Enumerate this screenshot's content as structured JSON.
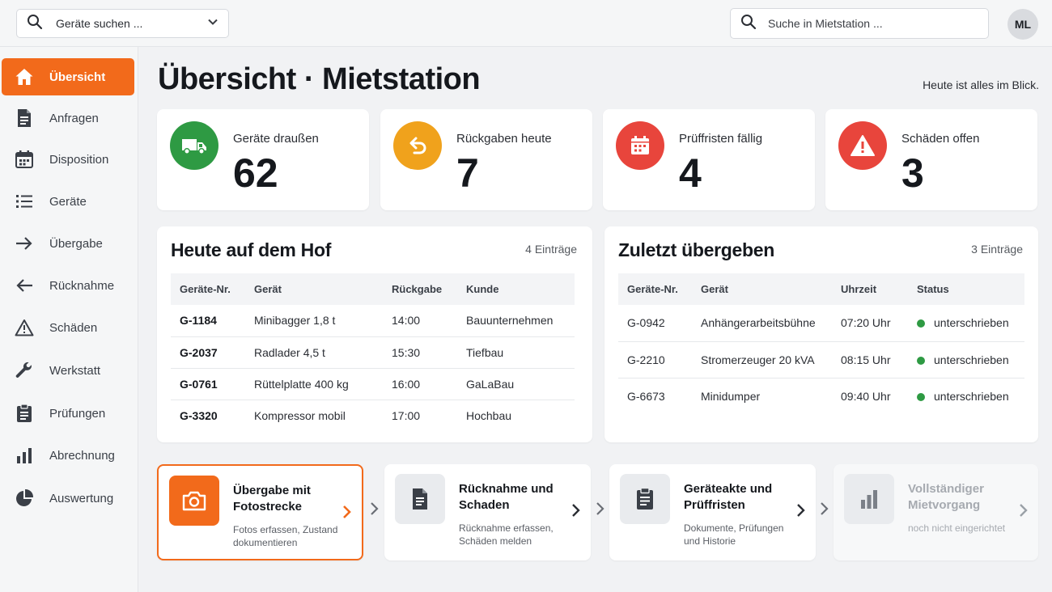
{
  "topbar": {
    "device_search_label": "Geräte suchen ...",
    "global_search_placeholder": "Suche in Mietstation ...",
    "avatar_initials": "ML"
  },
  "sidebar": {
    "items": [
      {
        "label": "Übersicht",
        "icon": "home-icon",
        "active": true
      },
      {
        "label": "Anfragen",
        "icon": "document-icon"
      },
      {
        "label": "Disposition",
        "icon": "calendar-icon"
      },
      {
        "label": "Geräte",
        "icon": "list-icon"
      },
      {
        "label": "Übergabe",
        "icon": "arrow-right-icon"
      },
      {
        "label": "Rücknahme",
        "icon": "arrow-left-icon"
      },
      {
        "label": "Schäden",
        "icon": "warning-icon"
      },
      {
        "label": "Werkstatt",
        "icon": "wrench-icon"
      },
      {
        "label": "Prüfungen",
        "icon": "clipboard-icon"
      },
      {
        "label": "Abrechnung",
        "icon": "bar-chart-icon"
      },
      {
        "label": "Auswertung",
        "icon": "pie-chart-icon"
      }
    ]
  },
  "header": {
    "title": "Übersicht · Mietstation",
    "subtitle": "Heute ist alles im Blick."
  },
  "stats": [
    {
      "label": "Geräte draußen",
      "value": "62",
      "icon": "truck-icon",
      "color": "#2e9a43"
    },
    {
      "label": "Rückgaben heute",
      "value": "7",
      "icon": "return-icon",
      "color": "#f0a21c"
    },
    {
      "label": "Prüffristen fällig",
      "value": "4",
      "icon": "calendar-icon",
      "color": "#e8453c"
    },
    {
      "label": "Schäden offen",
      "value": "3",
      "icon": "warning-icon",
      "color": "#e8453c"
    }
  ],
  "yard": {
    "title": "Heute auf dem Hof",
    "count": "4 Einträge",
    "columns": [
      "Geräte-Nr.",
      "Gerät",
      "Rückgabe",
      "Kunde"
    ],
    "rows": [
      [
        "G-1184",
        "Minibagger 1,8 t",
        "14:00",
        "Bauunternehmen"
      ],
      [
        "G-2037",
        "Radlader 4,5 t",
        "15:30",
        "Tiefbau"
      ],
      [
        "G-0761",
        "Rüttelplatte 400 kg",
        "16:00",
        "GaLaBau"
      ],
      [
        "G-3320",
        "Kompressor mobil",
        "17:00",
        "Hochbau"
      ]
    ]
  },
  "handovers": {
    "title": "Zuletzt übergeben",
    "count": "3 Einträge",
    "columns": [
      "Geräte-Nr.",
      "Gerät",
      "Uhrzeit",
      "Status"
    ],
    "rows": [
      [
        "G-0942",
        "Anhängerarbeitsbühne",
        "07:20 Uhr",
        "unterschrieben"
      ],
      [
        "G-2210",
        "Stromerzeuger 20 kVA",
        "08:15 Uhr",
        "unterschrieben"
      ],
      [
        "G-6673",
        "Minidumper",
        "09:40 Uhr",
        "unterschrieben"
      ]
    ],
    "status_color": "#2e9a43"
  },
  "workflow": [
    {
      "title": "Übergabe mit Fotostrecke",
      "desc": "Fotos erfassen, Zustand dokumentieren",
      "icon": "camera-icon",
      "state": "selected"
    },
    {
      "title": "Rücknahme und Schaden",
      "desc": "Rücknahme erfassen, Schäden melden",
      "icon": "document-icon",
      "state": "normal"
    },
    {
      "title": "Geräteakte und Prüffristen",
      "desc": "Dokumente, Prüfungen und Historie",
      "icon": "clipboard-icon",
      "state": "normal"
    },
    {
      "title": "Vollständiger Mietvorgang",
      "desc": "noch nicht eingerichtet",
      "icon": "bar-chart-icon",
      "state": "disabled"
    }
  ],
  "accent_color": "#f26a1b"
}
